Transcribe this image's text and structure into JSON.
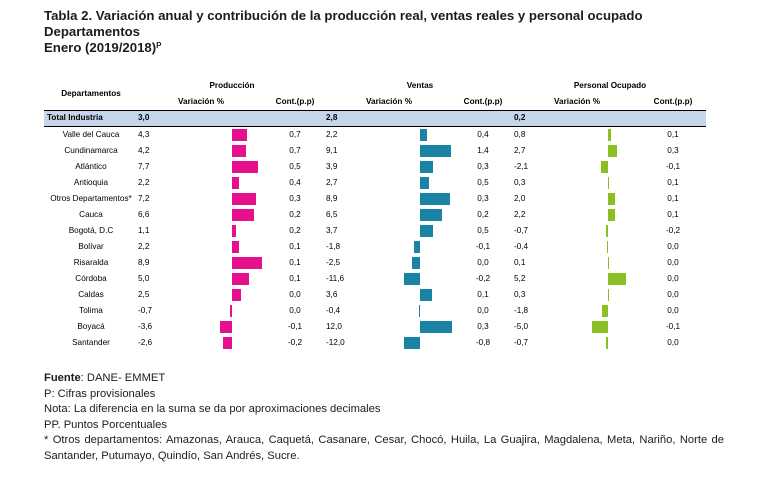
{
  "title": {
    "line1": "Tabla 2. Variación anual y contribución de la producción real, ventas reales y personal ocupado",
    "line2": "Departamentos",
    "line3": "Enero (2019/2018)",
    "line3_sup": "P"
  },
  "table": {
    "dep_header": "Departamentos",
    "groups": [
      "Producción",
      "Ventas",
      "Personal Ocupado"
    ],
    "var_label": "Variación %",
    "cont_label": "Cont.(p.p)",
    "total": {
      "label": "Total Industria",
      "prod_var": "3,0",
      "ventas_var": "2,8",
      "personal_var": "0,2"
    },
    "rows": [
      {
        "dep": "Valle del Cauca",
        "pv": "4,3",
        "pc": "0,7",
        "vv": "2,2",
        "vc": "0,4",
        "ev": "0,8",
        "ec": "0,1"
      },
      {
        "dep": "Cundinamarca",
        "pv": "4,2",
        "pc": "0,7",
        "vv": "9,1",
        "vc": "1,4",
        "ev": "2,7",
        "ec": "0,3"
      },
      {
        "dep": "Atlántico",
        "pv": "7,7",
        "pc": "0,5",
        "vv": "3,9",
        "vc": "0,3",
        "ev": "-2,1",
        "ec": "-0,1"
      },
      {
        "dep": "Antioquia",
        "pv": "2,2",
        "pc": "0,4",
        "vv": "2,7",
        "vc": "0,5",
        "ev": "0,3",
        "ec": "0,1"
      },
      {
        "dep": "Otros Departamentos*",
        "pv": "7,2",
        "pc": "0,3",
        "vv": "8,9",
        "vc": "0,3",
        "ev": "2,0",
        "ec": "0,1"
      },
      {
        "dep": "Cauca",
        "pv": "6,6",
        "pc": "0,2",
        "vv": "6,5",
        "vc": "0,2",
        "ev": "2,2",
        "ec": "0,1"
      },
      {
        "dep": "Bogotá, D.C",
        "pv": "1,1",
        "pc": "0,2",
        "vv": "3,7",
        "vc": "0,5",
        "ev": "-0,7",
        "ec": "-0,2"
      },
      {
        "dep": "Bolívar",
        "pv": "2,2",
        "pc": "0,1",
        "vv": "-1,8",
        "vc": "-0,1",
        "ev": "-0,4",
        "ec": "0,0"
      },
      {
        "dep": "Risaralda",
        "pv": "8,9",
        "pc": "0,1",
        "vv": "-2,5",
        "vc": "0,0",
        "ev": "0,1",
        "ec": "0,0"
      },
      {
        "dep": "Córdoba",
        "pv": "5,0",
        "pc": "0,1",
        "vv": "-11,6",
        "vc": "-0,2",
        "ev": "5,2",
        "ec": "0,0"
      },
      {
        "dep": "Caldas",
        "pv": "2,5",
        "pc": "0,0",
        "vv": "3,6",
        "vc": "0,1",
        "ev": "0,3",
        "ec": "0,0"
      },
      {
        "dep": "Tolima",
        "pv": "-0,7",
        "pc": "0,0",
        "vv": "-0,4",
        "vc": "0,0",
        "ev": "-1,8",
        "ec": "0,0"
      },
      {
        "dep": "Boyacá",
        "pv": "-3,6",
        "pc": "-0,1",
        "vv": "12,0",
        "vc": "0,3",
        "ev": "-5,0",
        "ec": "-0,1"
      },
      {
        "dep": "Santander",
        "pv": "-2,6",
        "pc": "-0,2",
        "vv": "-12,0",
        "vc": "-0,8",
        "ev": "-0,7",
        "ec": "0,0"
      }
    ]
  },
  "colors": {
    "prod": "#e5108c",
    "ventas": "#1a83a6",
    "personal": "#8cbf26",
    "total_bg": "#c6d6ea"
  },
  "footer": {
    "fuente_label": "Fuente",
    "fuente_text": ": DANE- EMMET",
    "p": "P: Cifras provisionales",
    "nota": "Nota: La diferencia en la suma se da por aproximaciones decimales",
    "pp": "PP. Puntos Porcentuales",
    "otros": "* Otros departamentos: Amazonas, Arauca, Caquetá, Casanare, Cesar, Chocó, Huila, La Guajira, Magdalena, Meta, Nariño, Norte de Santander, Putumayo, Quindío, San Andrés, Sucre."
  }
}
